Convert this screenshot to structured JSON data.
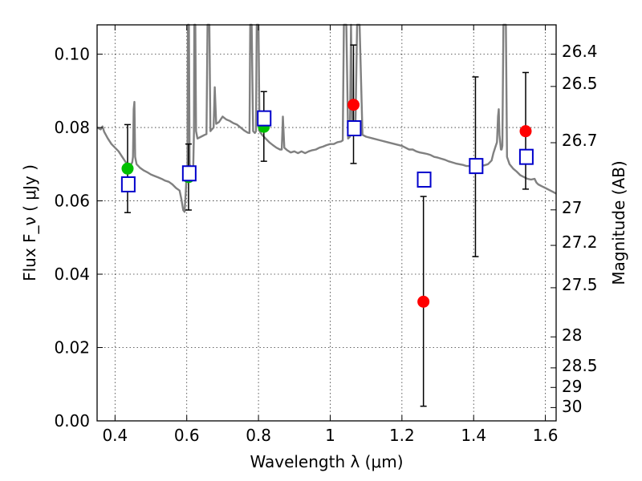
{
  "chart_data": {
    "type": "scatter",
    "xlabel": "Wavelength  λ (μm)",
    "ylabel": "Flux  F_ν  ( μJy )",
    "ylabel_right": "Magnitude (AB)",
    "xlim": [
      0.35,
      1.63
    ],
    "ylim": [
      0.0,
      0.108
    ],
    "x_ticks": [
      {
        "value": 0.4,
        "label": "0.4"
      },
      {
        "value": 0.6,
        "label": "0.6"
      },
      {
        "value": 0.8,
        "label": "0.8"
      },
      {
        "value": 1.0,
        "label": "1"
      },
      {
        "value": 1.2,
        "label": "1.2"
      },
      {
        "value": 1.4,
        "label": "1.4"
      },
      {
        "value": 1.6,
        "label": "1.6"
      }
    ],
    "y_ticks": [
      {
        "value": 0.0,
        "label": "0.00"
      },
      {
        "value": 0.02,
        "label": "0.02"
      },
      {
        "value": 0.04,
        "label": "0.04"
      },
      {
        "value": 0.06,
        "label": "0.06"
      },
      {
        "value": 0.08,
        "label": "0.08"
      },
      {
        "value": 0.1,
        "label": "0.10"
      }
    ],
    "right_ticks": [
      {
        "mag": 26.4,
        "label": "26.4"
      },
      {
        "mag": 26.5,
        "label": "26.5"
      },
      {
        "mag": 26.7,
        "label": "26.7"
      },
      {
        "mag": 27.0,
        "label": "27"
      },
      {
        "mag": 27.2,
        "label": "27.2"
      },
      {
        "mag": 27.5,
        "label": "27.5"
      },
      {
        "mag": 28.0,
        "label": "28"
      },
      {
        "mag": 28.5,
        "label": "28.5"
      },
      {
        "mag": 29.0,
        "label": "29"
      },
      {
        "mag": 30.0,
        "label": "30"
      }
    ],
    "grid": true,
    "series": [
      {
        "kind": "line",
        "color": "#808080",
        "points": [
          [
            0.35,
            0.08
          ],
          [
            0.36,
            0.0795
          ],
          [
            0.365,
            0.0803
          ],
          [
            0.37,
            0.0788
          ],
          [
            0.38,
            0.077
          ],
          [
            0.39,
            0.0755
          ],
          [
            0.4,
            0.0745
          ],
          [
            0.41,
            0.0735
          ],
          [
            0.42,
            0.072
          ],
          [
            0.43,
            0.0705
          ],
          [
            0.44,
            0.0698
          ],
          [
            0.445,
            0.07
          ],
          [
            0.448,
            0.0705
          ],
          [
            0.45,
            0.072
          ],
          [
            0.452,
            0.085
          ],
          [
            0.454,
            0.087
          ],
          [
            0.456,
            0.072
          ],
          [
            0.46,
            0.07
          ],
          [
            0.47,
            0.069
          ],
          [
            0.48,
            0.0683
          ],
          [
            0.49,
            0.0678
          ],
          [
            0.5,
            0.0672
          ],
          [
            0.51,
            0.0668
          ],
          [
            0.52,
            0.0664
          ],
          [
            0.53,
            0.066
          ],
          [
            0.54,
            0.0655
          ],
          [
            0.55,
            0.0652
          ],
          [
            0.56,
            0.0645
          ],
          [
            0.57,
            0.0635
          ],
          [
            0.58,
            0.0628
          ],
          [
            0.585,
            0.0605
          ],
          [
            0.59,
            0.0575
          ],
          [
            0.594,
            0.057
          ],
          [
            0.597,
            0.062
          ],
          [
            0.6,
            0.068
          ],
          [
            0.602,
            0.07
          ],
          [
            0.603,
            0.108
          ],
          [
            0.606,
            0.108
          ],
          [
            0.608,
            0.07
          ],
          [
            0.612,
            0.069
          ],
          [
            0.618,
            0.069
          ],
          [
            0.62,
            0.079
          ],
          [
            0.621,
            0.108
          ],
          [
            0.624,
            0.108
          ],
          [
            0.626,
            0.079
          ],
          [
            0.63,
            0.077
          ],
          [
            0.64,
            0.0775
          ],
          [
            0.65,
            0.078
          ],
          [
            0.655,
            0.0782
          ],
          [
            0.658,
            0.108
          ],
          [
            0.663,
            0.108
          ],
          [
            0.666,
            0.079
          ],
          [
            0.67,
            0.0795
          ],
          [
            0.675,
            0.08
          ],
          [
            0.678,
            0.091
          ],
          [
            0.682,
            0.081
          ],
          [
            0.69,
            0.0815
          ],
          [
            0.7,
            0.083
          ],
          [
            0.71,
            0.0822
          ],
          [
            0.72,
            0.0818
          ],
          [
            0.73,
            0.0812
          ],
          [
            0.74,
            0.0808
          ],
          [
            0.75,
            0.08
          ],
          [
            0.76,
            0.0792
          ],
          [
            0.77,
            0.0786
          ],
          [
            0.775,
            0.0785
          ],
          [
            0.777,
            0.108
          ],
          [
            0.781,
            0.108
          ],
          [
            0.785,
            0.079
          ],
          [
            0.79,
            0.0785
          ],
          [
            0.793,
            0.079
          ],
          [
            0.795,
            0.108
          ],
          [
            0.8,
            0.108
          ],
          [
            0.803,
            0.079
          ],
          [
            0.81,
            0.078
          ],
          [
            0.82,
            0.077
          ],
          [
            0.83,
            0.076
          ],
          [
            0.84,
            0.0752
          ],
          [
            0.85,
            0.0745
          ],
          [
            0.86,
            0.074
          ],
          [
            0.865,
            0.074
          ],
          [
            0.868,
            0.083
          ],
          [
            0.872,
            0.0745
          ],
          [
            0.88,
            0.0738
          ],
          [
            0.89,
            0.0732
          ],
          [
            0.9,
            0.0735
          ],
          [
            0.91,
            0.073
          ],
          [
            0.92,
            0.0735
          ],
          [
            0.93,
            0.073
          ],
          [
            0.94,
            0.0735
          ],
          [
            0.95,
            0.0738
          ],
          [
            0.96,
            0.074
          ],
          [
            0.97,
            0.0745
          ],
          [
            0.98,
            0.0748
          ],
          [
            0.99,
            0.0752
          ],
          [
            1.0,
            0.0755
          ],
          [
            1.01,
            0.0755
          ],
          [
            1.02,
            0.076
          ],
          [
            1.03,
            0.0762
          ],
          [
            1.035,
            0.0765
          ],
          [
            1.038,
            0.108
          ],
          [
            1.045,
            0.108
          ],
          [
            1.05,
            0.077
          ],
          [
            1.055,
            0.0775
          ],
          [
            1.058,
            0.108
          ],
          [
            1.062,
            0.078
          ],
          [
            1.07,
            0.0785
          ],
          [
            1.075,
            0.108
          ],
          [
            1.082,
            0.108
          ],
          [
            1.09,
            0.078
          ],
          [
            1.1,
            0.0775
          ],
          [
            1.12,
            0.077
          ],
          [
            1.14,
            0.0765
          ],
          [
            1.16,
            0.076
          ],
          [
            1.18,
            0.0755
          ],
          [
            1.2,
            0.075
          ],
          [
            1.21,
            0.0745
          ],
          [
            1.22,
            0.074
          ],
          [
            1.23,
            0.074
          ],
          [
            1.24,
            0.0735
          ],
          [
            1.25,
            0.0732
          ],
          [
            1.26,
            0.073
          ],
          [
            1.27,
            0.0728
          ],
          [
            1.28,
            0.0725
          ],
          [
            1.29,
            0.072
          ],
          [
            1.3,
            0.0718
          ],
          [
            1.31,
            0.0715
          ],
          [
            1.32,
            0.0712
          ],
          [
            1.33,
            0.0708
          ],
          [
            1.34,
            0.0705
          ],
          [
            1.35,
            0.0702
          ],
          [
            1.36,
            0.07
          ],
          [
            1.37,
            0.0698
          ],
          [
            1.38,
            0.0695
          ],
          [
            1.39,
            0.0695
          ],
          [
            1.4,
            0.0695
          ],
          [
            1.41,
            0.0694
          ],
          [
            1.42,
            0.0695
          ],
          [
            1.43,
            0.0697
          ],
          [
            1.44,
            0.07
          ],
          [
            1.45,
            0.071
          ],
          [
            1.455,
            0.073
          ],
          [
            1.46,
            0.0745
          ],
          [
            1.465,
            0.076
          ],
          [
            1.468,
            0.083
          ],
          [
            1.47,
            0.085
          ],
          [
            1.472,
            0.078
          ],
          [
            1.476,
            0.074
          ],
          [
            1.478,
            0.074
          ],
          [
            1.48,
            0.075
          ],
          [
            1.483,
            0.108
          ],
          [
            1.49,
            0.108
          ],
          [
            1.493,
            0.072
          ],
          [
            1.5,
            0.07
          ],
          [
            1.51,
            0.0688
          ],
          [
            1.52,
            0.068
          ],
          [
            1.53,
            0.067
          ],
          [
            1.54,
            0.0665
          ],
          [
            1.55,
            0.066
          ],
          [
            1.56,
            0.0658
          ],
          [
            1.57,
            0.066
          ],
          [
            1.575,
            0.065
          ],
          [
            1.58,
            0.0645
          ],
          [
            1.59,
            0.064
          ],
          [
            1.6,
            0.0635
          ],
          [
            1.61,
            0.063
          ],
          [
            1.62,
            0.0625
          ],
          [
            1.63,
            0.062
          ]
        ]
      },
      {
        "kind": "points",
        "marker": "circle",
        "color": "#00c000",
        "points": [
          {
            "x": 0.435,
            "y": 0.0688,
            "err": [
              0.0568,
              0.0808
            ]
          },
          {
            "x": 0.605,
            "y": 0.0665,
            "err": [
              0.0575,
              0.0755
            ]
          },
          {
            "x": 0.815,
            "y": 0.0802,
            "err": [
              0.0708,
              0.0898
            ]
          }
        ]
      },
      {
        "kind": "points",
        "marker": "circle",
        "color": "#ff0000",
        "points": [
          {
            "x": 1.065,
            "y": 0.0862,
            "err": [
              0.0702,
              0.1025
            ]
          },
          {
            "x": 1.26,
            "y": 0.0325,
            "err": [
              0.004,
              0.0612
            ]
          },
          {
            "x": 1.405,
            "y": 0.0692,
            "err": [
              0.0448,
              0.0938
            ]
          },
          {
            "x": 1.545,
            "y": 0.079,
            "err": [
              0.0632,
              0.095
            ]
          }
        ]
      },
      {
        "kind": "points",
        "marker": "open-square",
        "color": "#0000cc",
        "points": [
          {
            "x": 0.437,
            "y": 0.0645
          },
          {
            "x": 0.607,
            "y": 0.0675
          },
          {
            "x": 0.816,
            "y": 0.0825
          },
          {
            "x": 1.067,
            "y": 0.0798
          },
          {
            "x": 1.262,
            "y": 0.0658
          },
          {
            "x": 1.407,
            "y": 0.0695
          },
          {
            "x": 1.547,
            "y": 0.072
          }
        ]
      }
    ]
  }
}
